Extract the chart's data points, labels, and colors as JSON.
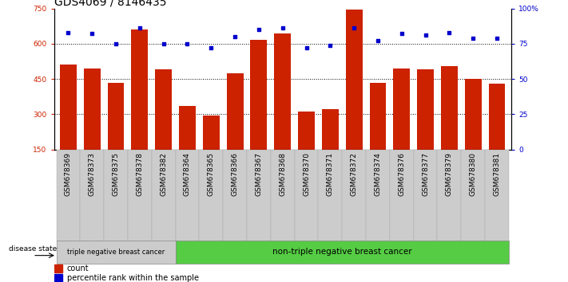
{
  "title": "GDS4069 / 8146435",
  "samples": [
    "GSM678369",
    "GSM678373",
    "GSM678375",
    "GSM678378",
    "GSM678382",
    "GSM678364",
    "GSM678365",
    "GSM678366",
    "GSM678367",
    "GSM678368",
    "GSM678370",
    "GSM678371",
    "GSM678372",
    "GSM678374",
    "GSM678376",
    "GSM678377",
    "GSM678379",
    "GSM678380",
    "GSM678381"
  ],
  "counts": [
    510,
    495,
    435,
    660,
    490,
    335,
    295,
    475,
    615,
    645,
    310,
    320,
    745,
    435,
    495,
    490,
    505,
    450,
    430
  ],
  "percentiles": [
    83,
    82,
    75,
    86,
    75,
    75,
    72,
    80,
    85,
    86,
    72,
    74,
    86,
    77,
    82,
    81,
    83,
    79,
    79
  ],
  "group1_count": 5,
  "group1_label": "triple negative breast cancer",
  "group2_label": "non-triple negative breast cancer",
  "disease_state_label": "disease state",
  "ylim_left": [
    150,
    750
  ],
  "ylim_right": [
    0,
    100
  ],
  "yticks_left": [
    150,
    300,
    450,
    600,
    750
  ],
  "yticks_right": [
    0,
    25,
    50,
    75,
    100
  ],
  "bar_color": "#cc2200",
  "dot_color": "#0000cc",
  "group1_bg": "#cccccc",
  "group2_bg": "#55cc44",
  "legend_count_label": "count",
  "legend_pct_label": "percentile rank within the sample",
  "title_fontsize": 10,
  "tick_fontsize": 6.5,
  "axis_label_color_left": "#cc2200",
  "axis_label_color_right": "#0000cc",
  "gridline_values": [
    300,
    450,
    600
  ],
  "bar_width": 0.7
}
